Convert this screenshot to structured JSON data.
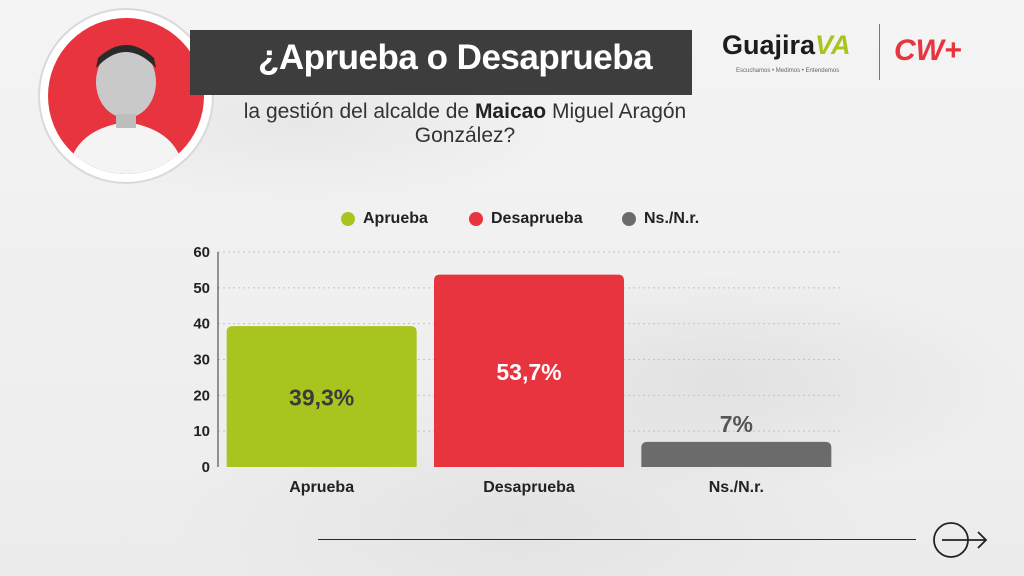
{
  "header": {
    "title": "¿Aprueba o Desaprueba",
    "subtitle_pre": "la gestión del alcalde de ",
    "subtitle_bold": "Maicao",
    "subtitle_post": " Miguel Aragón González?"
  },
  "logos": {
    "guajira_main": "Guajira",
    "guajira_accent": "VA",
    "guajira_tagline": "Escuchamos • Medimos • Entendemos",
    "cw": "CW+"
  },
  "colors": {
    "aprueba": "#a8c41e",
    "desaprueba": "#e8343f",
    "nsnr": "#6b6b6b",
    "title_bar": "#3d3d3d"
  },
  "chart_data": {
    "type": "bar",
    "categories": [
      "Aprueba",
      "Desaprueba",
      "Ns./N.r."
    ],
    "values": [
      39.3,
      53.7,
      7
    ],
    "data_labels": [
      "39,3%",
      "53,7%",
      "7%"
    ],
    "legend": [
      "Aprueba",
      "Desaprueba",
      "Ns./N.r."
    ],
    "legend_position": "top-center",
    "ylim": [
      0,
      60
    ],
    "yticks": [
      "0",
      "10",
      "20",
      "30",
      "40",
      "50",
      "60"
    ],
    "grid": true
  }
}
